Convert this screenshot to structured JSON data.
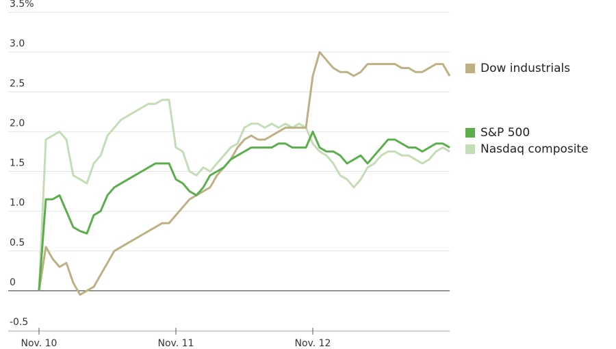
{
  "chart_data": {
    "type": "line",
    "x": [
      "Nov. 10",
      null,
      null,
      null,
      null,
      null,
      null,
      null,
      null,
      null,
      null,
      null,
      null,
      null,
      null,
      null,
      null,
      null,
      null,
      null,
      "Nov. 11",
      null,
      null,
      null,
      null,
      null,
      null,
      null,
      null,
      null,
      null,
      null,
      null,
      null,
      null,
      null,
      null,
      null,
      null,
      null,
      "Nov. 12",
      null,
      null,
      null,
      null,
      null,
      null,
      null,
      null,
      null,
      null,
      null,
      null,
      null,
      null,
      null,
      null,
      null,
      null,
      null,
      null
    ],
    "series": [
      {
        "name": "Nasdaq composite",
        "color": "#c4ddb6",
        "values": [
          0,
          1.9,
          1.95,
          2.0,
          1.9,
          1.45,
          1.4,
          1.35,
          1.6,
          1.7,
          1.95,
          2.05,
          2.15,
          2.2,
          2.25,
          2.3,
          2.35,
          2.35,
          2.4,
          2.4,
          1.8,
          1.75,
          1.5,
          1.45,
          1.55,
          1.5,
          1.6,
          1.7,
          1.8,
          1.85,
          2.05,
          2.1,
          2.1,
          2.05,
          2.1,
          2.05,
          2.1,
          2.05,
          2.1,
          2.05,
          1.85,
          1.75,
          1.7,
          1.6,
          1.45,
          1.4,
          1.3,
          1.4,
          1.55,
          1.6,
          1.7,
          1.75,
          1.75,
          1.7,
          1.7,
          1.65,
          1.6,
          1.65,
          1.75,
          1.8,
          1.75
        ]
      },
      {
        "name": "Dow industrials",
        "color": "#bcb084",
        "values": [
          0,
          0.55,
          0.4,
          0.3,
          0.35,
          0.1,
          -0.05,
          0,
          0.05,
          0.2,
          0.35,
          0.5,
          0.55,
          0.6,
          0.65,
          0.7,
          0.75,
          0.8,
          0.85,
          0.85,
          0.95,
          1.05,
          1.15,
          1.2,
          1.25,
          1.3,
          1.45,
          1.55,
          1.65,
          1.8,
          1.9,
          1.95,
          1.9,
          1.9,
          1.95,
          2.0,
          2.05,
          2.05,
          2.05,
          2.05,
          2.7,
          3.0,
          2.9,
          2.8,
          2.75,
          2.75,
          2.7,
          2.75,
          2.85,
          2.85,
          2.85,
          2.85,
          2.85,
          2.8,
          2.8,
          2.75,
          2.75,
          2.8,
          2.85,
          2.85,
          2.7
        ]
      },
      {
        "name": "S&P 500",
        "color": "#5cae4c",
        "values": [
          0,
          1.15,
          1.15,
          1.2,
          1.0,
          0.8,
          0.75,
          0.72,
          0.95,
          1.0,
          1.2,
          1.3,
          1.35,
          1.4,
          1.45,
          1.5,
          1.55,
          1.6,
          1.6,
          1.6,
          1.4,
          1.35,
          1.25,
          1.2,
          1.3,
          1.45,
          1.5,
          1.55,
          1.65,
          1.7,
          1.75,
          1.8,
          1.8,
          1.8,
          1.8,
          1.85,
          1.85,
          1.8,
          1.8,
          1.8,
          2.0,
          1.8,
          1.75,
          1.75,
          1.7,
          1.6,
          1.65,
          1.7,
          1.6,
          1.7,
          1.8,
          1.9,
          1.9,
          1.85,
          1.8,
          1.8,
          1.75,
          1.8,
          1.85,
          1.85,
          1.8
        ]
      }
    ],
    "ylim": [
      -0.5,
      3.5
    ],
    "yticks": [
      {
        "value": 3.5,
        "label": "3.5%"
      },
      {
        "value": 3,
        "label": "3.0"
      },
      2.5,
      {
        "value": 2,
        "label": "2.0"
      },
      1.5,
      {
        "value": 1,
        "label": "1.0"
      },
      0.5,
      0,
      -0.5
    ],
    "grid": true
  }
}
